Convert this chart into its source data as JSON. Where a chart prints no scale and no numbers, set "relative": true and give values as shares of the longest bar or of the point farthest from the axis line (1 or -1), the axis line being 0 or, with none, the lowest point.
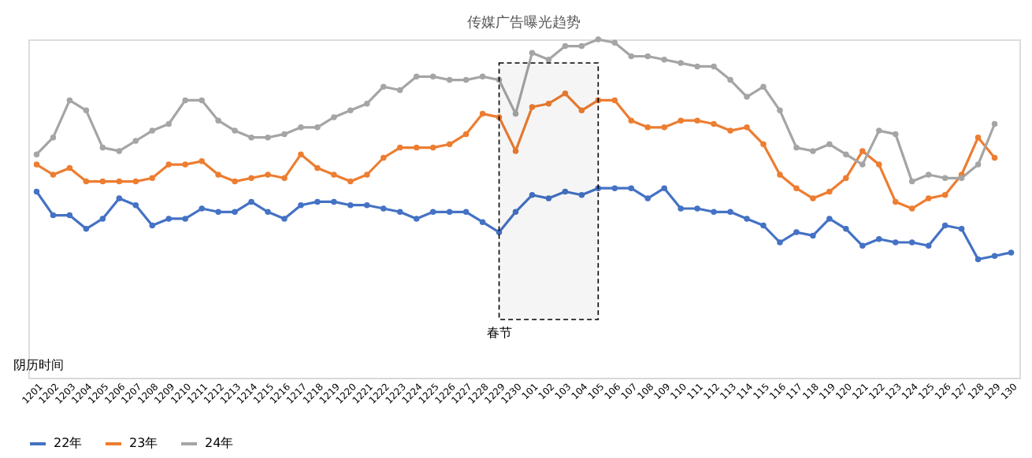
{
  "chart_data": {
    "type": "line",
    "title": "传媒广告曝光趋势",
    "xlabel": "阴历时间",
    "relative": true,
    "categories": [
      "1201",
      "1202",
      "1203",
      "1204",
      "1205",
      "1206",
      "1207",
      "1208",
      "1209",
      "1210",
      "1211",
      "1212",
      "1213",
      "1214",
      "1215",
      "1216",
      "1217",
      "1218",
      "1219",
      "1220",
      "1221",
      "1222",
      "1223",
      "1224",
      "1225",
      "1226",
      "1227",
      "1228",
      "1229",
      "1230",
      "101",
      "102",
      "103",
      "104",
      "105",
      "106",
      "107",
      "108",
      "109",
      "110",
      "111",
      "112",
      "113",
      "114",
      "115",
      "116",
      "117",
      "118",
      "119",
      "120",
      "121",
      "122",
      "123",
      "124",
      "125",
      "126",
      "127",
      "128",
      "129",
      "130"
    ],
    "series": [
      {
        "name": "22年",
        "color": "#4472c4",
        "values": [
          0.55,
          0.48,
          0.48,
          0.44,
          0.47,
          0.53,
          0.51,
          0.45,
          0.47,
          0.47,
          0.5,
          0.49,
          0.49,
          0.52,
          0.49,
          0.47,
          0.51,
          0.52,
          0.52,
          0.51,
          0.51,
          0.5,
          0.49,
          0.47,
          0.49,
          0.49,
          0.49,
          0.46,
          0.43,
          0.49,
          0.54,
          0.53,
          0.55,
          0.54,
          0.56,
          0.56,
          0.56,
          0.53,
          0.56,
          0.5,
          0.5,
          0.49,
          0.49,
          0.47,
          0.45,
          0.4,
          0.43,
          0.42,
          0.47,
          0.44,
          0.39,
          0.41,
          0.4,
          0.4,
          0.39,
          0.45,
          0.44,
          0.35,
          0.36,
          0.37
        ]
      },
      {
        "name": "23年",
        "color": "#ed7d31",
        "values": [
          0.63,
          0.6,
          0.62,
          0.58,
          0.58,
          0.58,
          0.58,
          0.59,
          0.63,
          0.63,
          0.64,
          0.6,
          0.58,
          0.59,
          0.6,
          0.59,
          0.66,
          0.62,
          0.6,
          0.58,
          0.6,
          0.65,
          0.68,
          0.68,
          0.68,
          0.69,
          0.72,
          0.78,
          0.77,
          0.67,
          0.8,
          0.81,
          0.84,
          0.79,
          0.82,
          0.82,
          0.76,
          0.74,
          0.74,
          0.76,
          0.76,
          0.75,
          0.73,
          0.74,
          0.69,
          0.6,
          0.56,
          0.53,
          0.55,
          0.59,
          0.67,
          0.63,
          0.52,
          0.5,
          0.53,
          0.54,
          0.6,
          0.71,
          0.65,
          null
        ]
      },
      {
        "name": "24年",
        "color": "#a5a5a5",
        "values": [
          0.66,
          0.71,
          0.82,
          0.79,
          0.68,
          0.67,
          0.7,
          0.73,
          0.75,
          0.82,
          0.82,
          0.76,
          0.73,
          0.71,
          0.71,
          0.72,
          0.74,
          0.74,
          0.77,
          0.79,
          0.81,
          0.86,
          0.85,
          0.89,
          0.89,
          0.88,
          0.88,
          0.89,
          0.88,
          0.78,
          0.96,
          0.94,
          0.98,
          0.98,
          1,
          0.99,
          0.95,
          0.95,
          0.94,
          0.93,
          0.92,
          0.92,
          0.88,
          0.83,
          0.86,
          0.79,
          0.68,
          0.67,
          0.69,
          0.66,
          0.63,
          0.73,
          0.72,
          0.58,
          0.6,
          0.59,
          0.59,
          0.63,
          0.75,
          null
        ]
      }
    ],
    "bands": [
      {
        "axis": "x",
        "from": "1229",
        "to": "105",
        "label": "春节",
        "color": "#000000"
      }
    ],
    "marker": "circle",
    "line_style": "solid",
    "grid": false,
    "legend": "bottom"
  }
}
